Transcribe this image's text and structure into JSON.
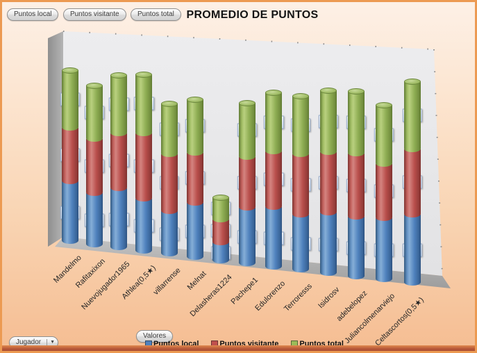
{
  "header": {
    "field_buttons": [
      "Puntos local",
      "Puntos visitante",
      "Puntos total"
    ],
    "title": "PROMEDIO DE PUNTOS"
  },
  "footer": {
    "axis_field_button": "Valores",
    "category_field_button": "Jugador"
  },
  "legend": {
    "position": "bottom",
    "items": [
      {
        "label": "Puntos local",
        "color": "#4f81bd"
      },
      {
        "label": "Puntos visitante",
        "color": "#c0504d"
      },
      {
        "label": "Puntos total",
        "color": "#9bbb59"
      }
    ]
  },
  "chart_data": {
    "type": "bar",
    "subtype": "3d-stacked-cylinder",
    "title": "PROMEDIO DE PUNTOS",
    "xlabel": "Jugador",
    "ylabel": "",
    "value_axis_labels_visible": false,
    "data_labels_visible": true,
    "grid": false,
    "legend_position": "bottom",
    "categories": [
      "Mandelmo",
      "Rafitaxixon",
      "Nuevojugador1965",
      "Athlea(0,5★)",
      "villarrense",
      "Melnat",
      "Delasheras1224",
      "Pachepe1",
      "Edulorenzo",
      "Terroresss",
      "Isidrosv",
      "adebelopez",
      "Juliancolmenarviejo",
      "Celtascortos(0,5★)"
    ],
    "series": [
      {
        "name": "Puntos local",
        "color": "#4f81bd",
        "values": [
          355,
          304,
          348,
          304,
          251,
          312,
          110,
          315,
          333,
          305,
          330,
          321,
          331,
          361
        ]
      },
      {
        "name": "Puntos visitante",
        "color": "#c0504d",
        "values": [
          305,
          305,
          307,
          361,
          311,
          272,
          127,
          269,
          294,
          318,
          317,
          328,
          276,
          334
        ]
      },
      {
        "name": "Puntos total",
        "color": "#9bbb59",
        "values": [
          330,
          305,
          327,
          331,
          281,
          292,
          119,
          292,
          313,
          311,
          323,
          325,
          304,
          348
        ]
      }
    ]
  },
  "colors": {
    "background_top": "#fdf0e6",
    "background_bottom": "#f5bd92",
    "window_border": "#ec9a52",
    "wall": "#e9e9eb",
    "floor": "#adadad",
    "title_text": "#141414"
  }
}
